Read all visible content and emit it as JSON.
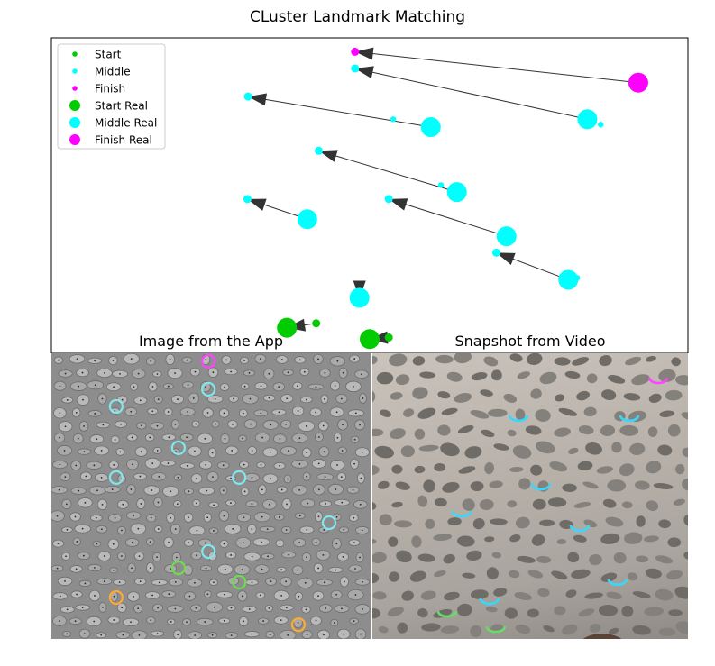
{
  "figure": {
    "title": "CLuster Landmark Matching"
  },
  "chart_data": {
    "type": "scatter",
    "title": "CLuster Landmark Matching",
    "xlabel": "",
    "ylabel": "",
    "xlim": [
      0,
      100
    ],
    "ylim": [
      0,
      100
    ],
    "grid": false,
    "legend_position": "top-left",
    "series": [
      {
        "name": "Start",
        "color": "#00cc00",
        "size": "small",
        "points": [
          [
            41.6,
            9.5
          ],
          [
            53.0,
            5.0
          ]
        ]
      },
      {
        "name": "Middle",
        "color": "#00ffff",
        "size": "small",
        "points": [
          [
            48.4,
            17.3
          ],
          [
            30.8,
            48.9
          ],
          [
            42.0,
            64.2
          ],
          [
            53.0,
            48.9
          ],
          [
            69.9,
            31.9
          ],
          [
            30.9,
            81.4
          ],
          [
            47.7,
            90.3
          ]
        ]
      },
      {
        "name": "Finish",
        "color": "#ff00ff",
        "size": "small",
        "points": [
          [
            47.7,
            95.6
          ]
        ]
      },
      {
        "name": "Start Real",
        "color": "#00cc00",
        "size": "large",
        "points": [
          [
            37.0,
            8.1
          ],
          [
            50.0,
            4.5
          ]
        ]
      },
      {
        "name": "Middle Real",
        "color": "#00ffff",
        "size": "large",
        "points": [
          [
            48.4,
            17.6
          ],
          [
            40.2,
            42.5
          ],
          [
            63.7,
            51.1
          ],
          [
            71.5,
            37.1
          ],
          [
            81.2,
            23.3
          ],
          [
            59.6,
            71.7
          ],
          [
            84.2,
            74.2
          ]
        ]
      },
      {
        "name": "Finish Real",
        "color": "#ff00ff",
        "size": "large",
        "points": [
          [
            92.2,
            85.8
          ]
        ]
      }
    ],
    "extra_small_points": [
      [
        53.7,
        74.2
      ],
      [
        61.2,
        53.3
      ],
      [
        86.3,
        72.5
      ],
      [
        82.6,
        23.9
      ]
    ],
    "arrows": [
      {
        "from": [
          92.2,
          85.8
        ],
        "to": [
          47.7,
          95.6
        ]
      },
      {
        "from": [
          84.2,
          74.2
        ],
        "to": [
          47.7,
          90.3
        ]
      },
      {
        "from": [
          59.6,
          71.7
        ],
        "to": [
          30.9,
          81.4
        ]
      },
      {
        "from": [
          63.7,
          51.1
        ],
        "to": [
          42.0,
          64.2
        ]
      },
      {
        "from": [
          71.5,
          37.1
        ],
        "to": [
          53.0,
          48.9
        ]
      },
      {
        "from": [
          40.2,
          42.5
        ],
        "to": [
          30.8,
          48.9
        ]
      },
      {
        "from": [
          81.2,
          23.3
        ],
        "to": [
          69.9,
          31.9
        ]
      },
      {
        "from": [
          48.4,
          17.6
        ],
        "to": [
          48.4,
          17.3
        ]
      },
      {
        "from": [
          41.6,
          9.5
        ],
        "to": [
          37.0,
          8.1
        ]
      },
      {
        "from": [
          53.0,
          5.0
        ],
        "to": [
          50.0,
          4.5
        ]
      }
    ]
  },
  "panels": {
    "app": {
      "title": "Image from the App",
      "markers": [
        {
          "color": "#ff44ff",
          "x": 49.2,
          "y": 2.8
        },
        {
          "color": "#7fe8ee",
          "x": 49.2,
          "y": 12.6
        },
        {
          "color": "#7fe8ee",
          "x": 20.3,
          "y": 18.6
        },
        {
          "color": "#7fe8ee",
          "x": 39.8,
          "y": 33.1
        },
        {
          "color": "#7fe8ee",
          "x": 20.3,
          "y": 43.5
        },
        {
          "color": "#7fe8ee",
          "x": 58.8,
          "y": 43.5
        },
        {
          "color": "#7fe8ee",
          "x": 87.0,
          "y": 59.3
        },
        {
          "color": "#7fe8ee",
          "x": 49.2,
          "y": 69.4
        },
        {
          "color": "#6fdc4f",
          "x": 39.8,
          "y": 75.1
        },
        {
          "color": "#6fdc4f",
          "x": 58.8,
          "y": 80.1
        },
        {
          "color": "#ffaa33",
          "x": 20.3,
          "y": 85.5
        },
        {
          "color": "#ffaa33",
          "x": 77.4,
          "y": 95.0
        }
      ]
    },
    "video": {
      "title": "Snapshot from Video",
      "markers": [
        {
          "color": "#ff44ff",
          "x": 90.6,
          "y": 8.2
        },
        {
          "color": "#33d9ff",
          "x": 46.3,
          "y": 21.4
        },
        {
          "color": "#33d9ff",
          "x": 81.4,
          "y": 21.4
        },
        {
          "color": "#33d9ff",
          "x": 53.4,
          "y": 45.4
        },
        {
          "color": "#33d9ff",
          "x": 28.3,
          "y": 54.9
        },
        {
          "color": "#33d9ff",
          "x": 65.7,
          "y": 59.9
        },
        {
          "color": "#33d9ff",
          "x": 77.7,
          "y": 78.8
        },
        {
          "color": "#33d9ff",
          "x": 37.1,
          "y": 85.5
        },
        {
          "color": "#66dd66",
          "x": 23.7,
          "y": 89.9
        },
        {
          "color": "#66dd66",
          "x": 39.1,
          "y": 95.3
        }
      ]
    }
  }
}
